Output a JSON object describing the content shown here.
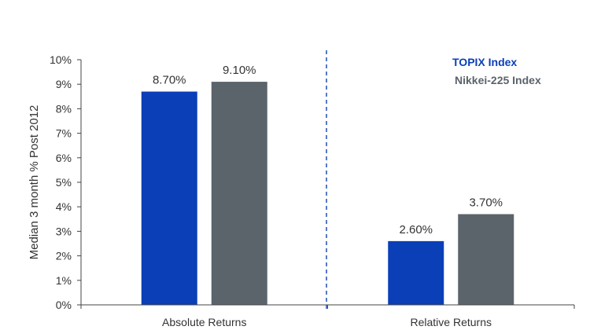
{
  "chart_data": {
    "type": "bar",
    "categories": [
      "Absolute Returns",
      "Relative Returns"
    ],
    "series": [
      {
        "name": "TOPIX Index",
        "values": [
          8.7,
          2.6
        ],
        "labels": [
          "8.70%",
          "2.60%"
        ],
        "color": "#0a3fb8"
      },
      {
        "name": "Nikkei-225 Index",
        "values": [
          9.1,
          3.7
        ],
        "labels": [
          "9.10%",
          "3.70%"
        ],
        "color": "#5b636b"
      }
    ],
    "ylabel": "Median 3 month % Post 2012",
    "ylim": [
      0,
      10
    ],
    "yticks": [
      "0%",
      "1%",
      "2%",
      "3%",
      "4%",
      "5%",
      "6%",
      "7%",
      "8%",
      "9%",
      "10%"
    ],
    "divider": "dashed vertical line between categories",
    "legend": "top-right, text only",
    "grid": false
  }
}
